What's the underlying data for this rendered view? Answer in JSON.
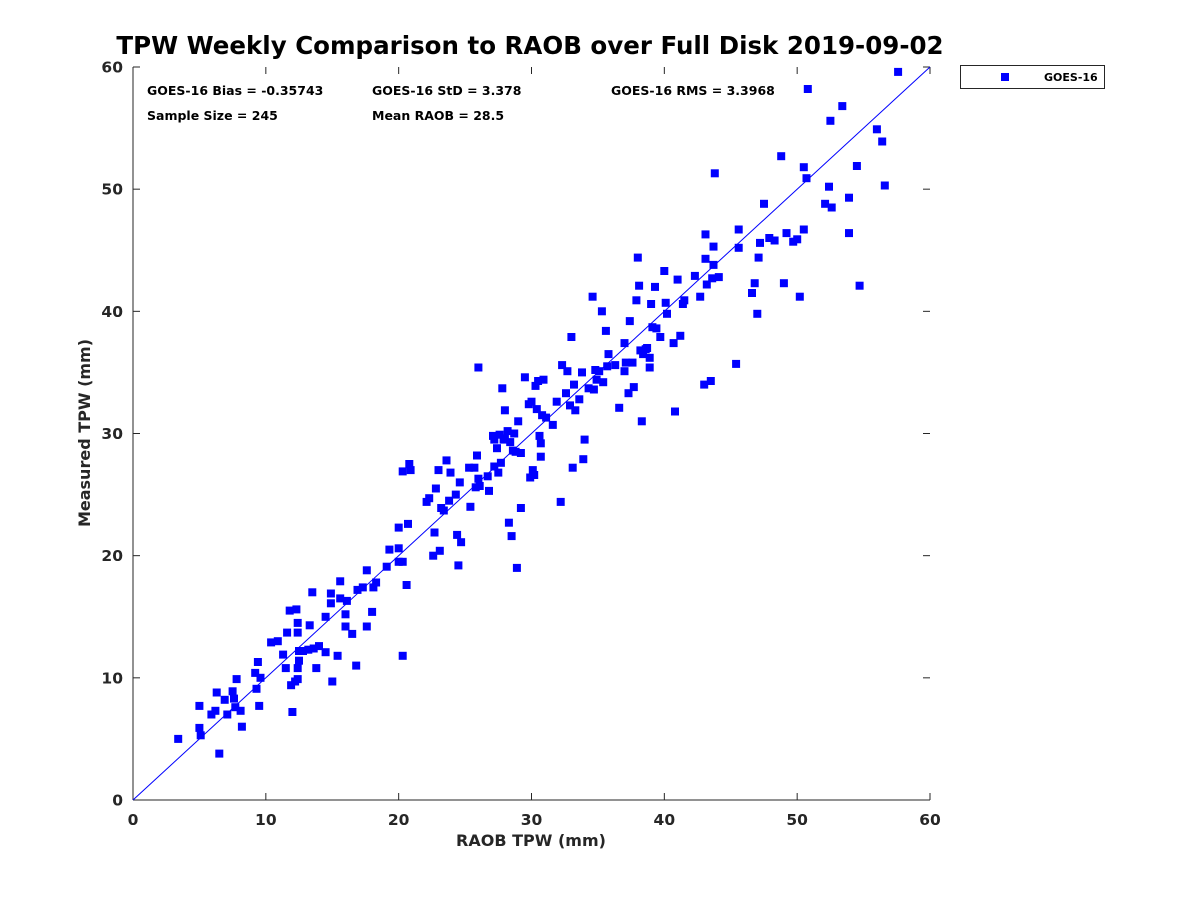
{
  "chart_data": {
    "type": "scatter",
    "title": "TPW Weekly Comparison to RAOB over Full Disk 2019-09-02",
    "xlabel": "RAOB TPW (mm)",
    "ylabel": "Measured TPW (mm)",
    "xlim": [
      0,
      60
    ],
    "ylim": [
      0,
      60
    ],
    "xticks": [
      "0",
      "10",
      "20",
      "30",
      "40",
      "50",
      "60"
    ],
    "yticks": [
      "0",
      "10",
      "20",
      "30",
      "40",
      "50",
      "60"
    ],
    "grid": false,
    "legend": {
      "position": "outside-top-right",
      "entries": [
        "GOES-16"
      ]
    },
    "reference_line": {
      "label": "1:1",
      "from": [
        0,
        0
      ],
      "to": [
        60,
        60
      ]
    },
    "stats": {
      "bias": "GOES-16 Bias = -0.35743",
      "std": "GOES-16 StD = 3.378",
      "rms": "GOES-16 RMS = 3.3968",
      "sample_size": "Sample Size = 245",
      "mean_raob": "Mean RAOB = 28.5"
    },
    "series": [
      {
        "name": "GOES-16",
        "color": "#0000ff",
        "points": [
          [
            3.4,
            5.0
          ],
          [
            5.0,
            7.7
          ],
          [
            5.0,
            5.9
          ],
          [
            5.1,
            5.3
          ],
          [
            5.9,
            7.0
          ],
          [
            6.2,
            7.3
          ],
          [
            6.3,
            8.8
          ],
          [
            6.5,
            3.8
          ],
          [
            6.9,
            8.2
          ],
          [
            7.1,
            7.0
          ],
          [
            7.5,
            8.9
          ],
          [
            7.6,
            8.3
          ],
          [
            7.7,
            7.6
          ],
          [
            7.8,
            9.9
          ],
          [
            8.1,
            7.3
          ],
          [
            8.2,
            6.0
          ],
          [
            9.2,
            10.4
          ],
          [
            9.3,
            9.1
          ],
          [
            9.4,
            11.3
          ],
          [
            9.5,
            7.7
          ],
          [
            9.6,
            10.0
          ],
          [
            10.4,
            12.9
          ],
          [
            10.9,
            13.0
          ],
          [
            11.3,
            11.9
          ],
          [
            11.5,
            10.8
          ],
          [
            11.6,
            13.7
          ],
          [
            11.8,
            15.5
          ],
          [
            11.9,
            9.4
          ],
          [
            12.0,
            7.2
          ],
          [
            12.2,
            9.7
          ],
          [
            12.3,
            15.6
          ],
          [
            12.4,
            14.5
          ],
          [
            12.4,
            13.7
          ],
          [
            12.4,
            10.8
          ],
          [
            12.4,
            9.9
          ],
          [
            12.5,
            11.4
          ],
          [
            12.5,
            12.2
          ],
          [
            12.8,
            12.2
          ],
          [
            13.2,
            12.3
          ],
          [
            13.3,
            14.3
          ],
          [
            13.5,
            17.0
          ],
          [
            13.6,
            12.4
          ],
          [
            13.8,
            10.8
          ],
          [
            14.0,
            12.6
          ],
          [
            14.5,
            15.0
          ],
          [
            14.5,
            12.1
          ],
          [
            14.9,
            16.1
          ],
          [
            14.9,
            16.9
          ],
          [
            15.0,
            9.7
          ],
          [
            15.4,
            11.8
          ],
          [
            15.6,
            17.9
          ],
          [
            15.6,
            16.5
          ],
          [
            16.0,
            14.2
          ],
          [
            16.1,
            16.3
          ],
          [
            16.0,
            15.2
          ],
          [
            16.5,
            13.6
          ],
          [
            16.8,
            11.0
          ],
          [
            16.9,
            17.2
          ],
          [
            17.3,
            17.4
          ],
          [
            17.6,
            14.2
          ],
          [
            17.6,
            18.8
          ],
          [
            18.0,
            15.4
          ],
          [
            18.1,
            17.4
          ],
          [
            18.3,
            17.8
          ],
          [
            19.1,
            19.1
          ],
          [
            19.3,
            20.5
          ],
          [
            20.0,
            22.3
          ],
          [
            20.0,
            20.6
          ],
          [
            20.3,
            19.5
          ],
          [
            20.3,
            26.9
          ],
          [
            20.3,
            11.8
          ],
          [
            20.6,
            17.6
          ],
          [
            20.7,
            22.6
          ],
          [
            20.8,
            27.5
          ],
          [
            20.9,
            27.0
          ],
          [
            22.1,
            24.4
          ],
          [
            22.3,
            24.7
          ],
          [
            22.6,
            20.0
          ],
          [
            22.7,
            21.9
          ],
          [
            22.8,
            25.5
          ],
          [
            23.0,
            27.0
          ],
          [
            23.1,
            20.4
          ],
          [
            23.2,
            23.9
          ],
          [
            23.6,
            27.8
          ],
          [
            23.8,
            24.5
          ],
          [
            23.9,
            26.8
          ],
          [
            24.3,
            25.0
          ],
          [
            24.4,
            21.7
          ],
          [
            24.5,
            19.2
          ],
          [
            24.6,
            26.0
          ],
          [
            24.7,
            21.1
          ],
          [
            25.3,
            27.2
          ],
          [
            25.4,
            24.0
          ],
          [
            25.7,
            27.2
          ],
          [
            25.8,
            25.6
          ],
          [
            25.9,
            28.2
          ],
          [
            26.0,
            35.4
          ],
          [
            26.0,
            26.3
          ],
          [
            26.1,
            25.7
          ],
          [
            26.7,
            26.5
          ],
          [
            26.8,
            25.3
          ],
          [
            27.1,
            29.8
          ],
          [
            27.2,
            29.5
          ],
          [
            27.4,
            28.8
          ],
          [
            27.5,
            26.8
          ],
          [
            27.6,
            29.9
          ],
          [
            27.7,
            27.6
          ],
          [
            27.8,
            33.7
          ],
          [
            27.9,
            29.5
          ],
          [
            28.0,
            29.6
          ],
          [
            28.0,
            31.9
          ],
          [
            28.2,
            30.2
          ],
          [
            28.3,
            22.7
          ],
          [
            28.4,
            29.3
          ],
          [
            28.5,
            21.6
          ],
          [
            28.6,
            28.6
          ],
          [
            28.7,
            30.0
          ],
          [
            28.8,
            28.5
          ],
          [
            28.9,
            19.0
          ],
          [
            29.0,
            31.0
          ],
          [
            29.2,
            23.9
          ],
          [
            29.2,
            28.4
          ],
          [
            29.5,
            34.6
          ],
          [
            29.8,
            32.4
          ],
          [
            29.9,
            26.4
          ],
          [
            30.0,
            32.6
          ],
          [
            30.1,
            27.0
          ],
          [
            30.2,
            26.6
          ],
          [
            30.3,
            33.9
          ],
          [
            30.4,
            32.0
          ],
          [
            30.5,
            34.3
          ],
          [
            30.6,
            29.8
          ],
          [
            30.7,
            28.1
          ],
          [
            30.7,
            29.2
          ],
          [
            30.8,
            31.5
          ],
          [
            30.9,
            34.4
          ],
          [
            31.6,
            30.7
          ],
          [
            31.9,
            32.6
          ],
          [
            32.2,
            24.4
          ],
          [
            32.3,
            35.6
          ],
          [
            32.6,
            33.3
          ],
          [
            32.7,
            35.1
          ],
          [
            32.9,
            32.3
          ],
          [
            33.0,
            37.9
          ],
          [
            33.1,
            27.2
          ],
          [
            33.2,
            34.0
          ],
          [
            33.3,
            31.9
          ],
          [
            33.6,
            32.8
          ],
          [
            33.8,
            35.0
          ],
          [
            33.9,
            27.9
          ],
          [
            34.0,
            29.5
          ],
          [
            34.3,
            33.7
          ],
          [
            34.6,
            41.2
          ],
          [
            34.7,
            33.6
          ],
          [
            34.9,
            34.4
          ],
          [
            35.1,
            35.1
          ],
          [
            35.3,
            40.0
          ],
          [
            35.4,
            34.2
          ],
          [
            35.6,
            38.4
          ],
          [
            35.7,
            35.5
          ],
          [
            35.8,
            36.5
          ],
          [
            36.3,
            35.6
          ],
          [
            36.6,
            32.1
          ],
          [
            37.0,
            37.4
          ],
          [
            37.0,
            35.1
          ],
          [
            37.1,
            35.8
          ],
          [
            37.3,
            33.3
          ],
          [
            37.4,
            39.2
          ],
          [
            37.6,
            35.8
          ],
          [
            37.7,
            33.8
          ],
          [
            37.9,
            40.9
          ],
          [
            38.0,
            44.4
          ],
          [
            38.1,
            42.1
          ],
          [
            38.2,
            36.8
          ],
          [
            38.3,
            31.0
          ],
          [
            38.4,
            36.5
          ],
          [
            38.6,
            36.9
          ],
          [
            38.7,
            37.0
          ],
          [
            38.9,
            35.4
          ],
          [
            38.9,
            36.2
          ],
          [
            39.0,
            40.6
          ],
          [
            39.1,
            38.7
          ],
          [
            39.3,
            42.0
          ],
          [
            39.4,
            38.6
          ],
          [
            39.7,
            37.9
          ],
          [
            40.0,
            43.3
          ],
          [
            40.1,
            40.7
          ],
          [
            40.2,
            39.8
          ],
          [
            40.7,
            37.4
          ],
          [
            40.8,
            31.8
          ],
          [
            41.0,
            42.6
          ],
          [
            41.2,
            38.0
          ],
          [
            41.4,
            40.6
          ],
          [
            41.5,
            40.9
          ],
          [
            42.7,
            41.2
          ],
          [
            43.0,
            34.0
          ],
          [
            43.1,
            44.3
          ],
          [
            43.1,
            46.3
          ],
          [
            43.2,
            42.2
          ],
          [
            43.5,
            34.3
          ],
          [
            43.6,
            42.7
          ],
          [
            43.7,
            45.3
          ],
          [
            43.7,
            43.8
          ],
          [
            43.8,
            51.3
          ],
          [
            44.1,
            42.8
          ],
          [
            45.4,
            35.7
          ],
          [
            45.6,
            46.7
          ],
          [
            45.6,
            45.2
          ],
          [
            46.6,
            41.5
          ],
          [
            46.8,
            42.3
          ],
          [
            47.0,
            39.8
          ],
          [
            47.1,
            44.4
          ],
          [
            47.2,
            45.6
          ],
          [
            47.5,
            48.8
          ],
          [
            48.3,
            45.8
          ],
          [
            48.8,
            52.7
          ],
          [
            49.0,
            42.3
          ],
          [
            49.2,
            46.4
          ],
          [
            49.7,
            45.7
          ],
          [
            50.0,
            45.9
          ],
          [
            50.2,
            41.2
          ],
          [
            50.5,
            46.7
          ],
          [
            50.5,
            51.8
          ],
          [
            50.7,
            50.9
          ],
          [
            50.8,
            58.2
          ],
          [
            52.1,
            48.8
          ],
          [
            52.4,
            50.2
          ],
          [
            52.5,
            55.6
          ],
          [
            52.6,
            48.5
          ],
          [
            53.4,
            56.8
          ],
          [
            53.9,
            49.3
          ],
          [
            53.9,
            46.4
          ],
          [
            54.5,
            51.9
          ],
          [
            54.7,
            42.1
          ],
          [
            56.0,
            54.9
          ],
          [
            56.4,
            53.9
          ],
          [
            56.6,
            50.3
          ],
          [
            57.6,
            59.6
          ],
          [
            20.0,
            19.5
          ],
          [
            23.4,
            23.7
          ],
          [
            27.2,
            27.3
          ],
          [
            31.1,
            31.3
          ],
          [
            34.8,
            35.2
          ],
          [
            42.3,
            42.9
          ],
          [
            47.9,
            46.0
          ]
        ]
      }
    ]
  }
}
